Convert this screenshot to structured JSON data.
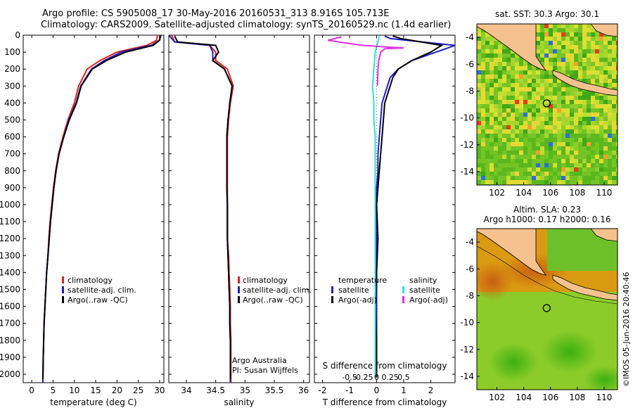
{
  "title": {
    "line1": "Argo profile: CS 5905008_17 30-May-2016 20160531_313 8.916S 105.713E",
    "line2": "Climatology: CARS2009. Satellite-adjusted climatology: synTS_20160529.nc (1.4d earlier)"
  },
  "side_label": "©IMOS 05-Jun-2016 20:40:46",
  "colors": {
    "red": "#e02020",
    "blue": "#1c1ccc",
    "black": "#000000",
    "cyan": "#30e0e0",
    "magenta": "#e030e0",
    "land": "#f5c28f"
  },
  "chart_data": [
    {
      "type": "line",
      "name": "temperature",
      "xlabel": "temperature (deg C)",
      "ylabel": "",
      "xlim": [
        -2,
        31
      ],
      "ylim": [
        2050,
        0
      ],
      "xticks": [
        0,
        5,
        10,
        15,
        20,
        25,
        30
      ],
      "yticks": [
        0,
        100,
        200,
        300,
        400,
        500,
        600,
        700,
        800,
        900,
        1000,
        1100,
        1200,
        1300,
        1400,
        1500,
        1600,
        1700,
        1800,
        1900,
        2000
      ],
      "series": [
        {
          "name": "climatology",
          "color": "#e02020",
          "x": [
            29.5,
            29.3,
            27,
            20,
            16,
            13,
            11,
            10,
            8.5,
            7.3,
            6.3,
            5.6,
            5.1,
            4.7,
            4.3,
            4.0,
            3.8,
            3.5,
            3.3,
            3.1,
            2.9,
            2.8,
            2.7,
            2.6
          ],
          "y": [
            0,
            30,
            60,
            100,
            150,
            200,
            300,
            400,
            500,
            600,
            700,
            800,
            900,
            1000,
            1100,
            1200,
            1300,
            1400,
            1500,
            1600,
            1700,
            1800,
            1900,
            2050
          ]
        },
        {
          "name": "satellite-adj. clim.",
          "color": "#1c1ccc",
          "x": [
            30.3,
            30,
            28,
            21,
            17,
            14,
            11.5,
            10.4,
            8.7,
            7.5,
            6.4,
            5.7,
            5.2,
            4.8,
            4.4,
            4.1,
            3.8,
            3.5,
            3.3,
            3.1,
            2.9,
            2.8,
            2.7,
            2.6
          ],
          "y": [
            0,
            30,
            60,
            100,
            150,
            200,
            300,
            400,
            500,
            600,
            700,
            800,
            900,
            1000,
            1100,
            1200,
            1300,
            1400,
            1500,
            1600,
            1700,
            1800,
            1900,
            2050
          ]
        },
        {
          "name": "Argo(..raw -QC)",
          "color": "#000000",
          "x": [
            30.1,
            30,
            28.5,
            22,
            17.5,
            14.2,
            11.6,
            10.5,
            8.8,
            7.5,
            6.4,
            5.7,
            5.2,
            4.8,
            4.4,
            4.1,
            3.8,
            3.5,
            3.3,
            3.1,
            2.9,
            2.8,
            2.7,
            2.6
          ],
          "y": [
            5,
            30,
            60,
            100,
            150,
            200,
            300,
            400,
            500,
            600,
            700,
            800,
            900,
            1000,
            1100,
            1200,
            1300,
            1400,
            1500,
            1600,
            1700,
            1800,
            1900,
            2030
          ]
        }
      ],
      "legend": [
        "climatology",
        "satellite-adj. clim.",
        "Argo(..raw -QC)"
      ]
    },
    {
      "type": "line",
      "name": "salinity",
      "xlabel": "salinity",
      "xlim": [
        33.7,
        36.1
      ],
      "ylim": [
        2050,
        0
      ],
      "xticks": [
        34,
        34.5,
        35,
        35.5,
        36
      ],
      "series": [
        {
          "name": "climatology",
          "color": "#e02020",
          "x": [
            33.75,
            33.8,
            34.4,
            34.5,
            34.5,
            34.7,
            34.8,
            34.75,
            34.72,
            34.7,
            34.7,
            34.7,
            34.7,
            34.7,
            34.7,
            34.7,
            34.72,
            34.73,
            34.74,
            34.75,
            34.75,
            34.76,
            34.76
          ],
          "y": [
            0,
            40,
            60,
            100,
            150,
            200,
            300,
            400,
            500,
            600,
            700,
            800,
            900,
            1000,
            1100,
            1200,
            1300,
            1400,
            1500,
            1600,
            1700,
            1800,
            2050
          ]
        },
        {
          "name": "satellite-adj. clim.",
          "color": "#1c1ccc",
          "x": [
            33.7,
            33.8,
            34.4,
            34.45,
            34.45,
            34.65,
            34.78,
            34.74,
            34.71,
            34.69,
            34.69,
            34.69,
            34.69,
            34.7,
            34.7,
            34.7,
            34.71,
            34.72,
            34.73,
            34.74,
            34.74,
            34.75,
            34.75
          ],
          "y": [
            0,
            40,
            60,
            100,
            150,
            200,
            300,
            400,
            500,
            600,
            700,
            800,
            900,
            1000,
            1100,
            1200,
            1300,
            1400,
            1500,
            1600,
            1700,
            1800,
            2050
          ]
        },
        {
          "name": "Argo(..raw -QC)",
          "color": "#000000",
          "x": [
            33.8,
            33.85,
            34.5,
            34.55,
            34.45,
            34.65,
            34.78,
            34.74,
            34.71,
            34.69,
            34.69,
            34.69,
            34.69,
            34.7,
            34.7,
            34.7,
            34.71,
            34.72,
            34.73,
            34.74,
            34.74,
            34.75,
            34.75
          ],
          "y": [
            5,
            40,
            60,
            100,
            150,
            200,
            300,
            400,
            500,
            600,
            700,
            800,
            900,
            1000,
            1100,
            1200,
            1300,
            1400,
            1500,
            1600,
            1700,
            1800,
            2030
          ]
        }
      ],
      "legend": [
        "climatology",
        "satellite-adj. clim.",
        "Argo(..raw -QC)"
      ],
      "annotation": [
        "Argo Australia",
        "PI: Susan Wijffels"
      ]
    },
    {
      "type": "line",
      "name": "difference from climatology",
      "xlabel": "T difference from climatology",
      "top_label": "S difference from climatology",
      "xlim": [
        -2.3,
        2.9
      ],
      "ylim": [
        2050,
        0
      ],
      "xticks": [
        -2,
        -1,
        0,
        1,
        2
      ],
      "xtick_labels": [
        "-2",
        "-1",
        "0",
        "1",
        "2"
      ],
      "top_ticks": [
        -0.5,
        -0.25,
        0,
        0.25,
        0.5
      ],
      "top_tick_labels": [
        "-0.5",
        "-0.25",
        "0",
        "0.25",
        "0.5"
      ],
      "series": [
        {
          "name": "temperature satellite",
          "color": "#1c1ccc",
          "x": [
            0.3,
            0.5,
            2.9,
            2.2,
            1.3,
            0.8,
            0.5,
            0.4,
            0.2,
            0.15,
            0.1,
            0.05,
            0.05,
            0.0,
            0.0,
            0.0,
            0.0,
            0.0,
            0.0,
            0.0,
            0.0
          ],
          "y": [
            5,
            20,
            60,
            100,
            150,
            200,
            250,
            300,
            400,
            500,
            600,
            700,
            800,
            900,
            1000,
            1200,
            1400,
            1600,
            1800,
            1950,
            2020
          ]
        },
        {
          "name": "temperature Argo(-adj)",
          "color": "#000000",
          "x": [
            0.6,
            0.9,
            2.4,
            2.0,
            1.3,
            0.8,
            0.6,
            0.5,
            0.3,
            0.25,
            0.2,
            0.15,
            0.1,
            0.05,
            0.0,
            0.05,
            0.0,
            -0.05,
            0.0,
            0.0,
            0.0
          ],
          "y": [
            5,
            20,
            60,
            100,
            150,
            200,
            250,
            300,
            400,
            500,
            600,
            700,
            800,
            900,
            1000,
            1200,
            1400,
            1600,
            1800,
            1950,
            2020
          ]
        },
        {
          "name": "salinity satellite",
          "color": "#30e0e0",
          "x": [
            0.1,
            0.05,
            -0.05,
            -0.1,
            -0.15,
            -0.1,
            -0.1,
            -0.05,
            -0.05,
            -0.05,
            -0.05,
            -0.05,
            -0.05,
            -0.05,
            -0.05,
            -0.05,
            -0.05,
            -0.05,
            -0.05
          ],
          "y": [
            5,
            40,
            100,
            200,
            300,
            400,
            500,
            600,
            700,
            800,
            900,
            1000,
            1200,
            1400,
            1600,
            1800,
            1900,
            1950,
            2020
          ]
        },
        {
          "name": "salinity Argo(-adj)",
          "color": "#e030e0",
          "x": [
            -1.3,
            -1.8,
            -1.2,
            -0.5,
            0.4,
            1.0,
            0.3,
            0.15,
            0.08,
            0.05,
            0.03
          ],
          "y": [
            10,
            30,
            45,
            60,
            70,
            75,
            80,
            100,
            150,
            200,
            300
          ]
        }
      ],
      "legend_temperature": {
        "header": "temperature",
        "items": [
          "satellite",
          "Argo(-adj)"
        ]
      },
      "legend_salinity": {
        "header": "salinity",
        "items": [
          "satellite",
          "Argo(-adj)"
        ]
      }
    },
    {
      "type": "heatmap",
      "name": "SST map",
      "title": "sat. SST: 30.3  Argo: 30.1",
      "xlim": [
        100.5,
        111
      ],
      "ylim": [
        -15,
        -3
      ],
      "xticks": [
        102,
        104,
        106,
        108,
        110
      ],
      "yticks": [
        -4,
        -6,
        -8,
        -10,
        -12,
        -14
      ],
      "argo_position": {
        "lon": 105.713,
        "lat": -8.916
      }
    },
    {
      "type": "heatmap",
      "name": "SLA map",
      "title": "Altim. SLA: 0.23",
      "subtitle": "Argo h1000: 0.17  h2000: 0.16",
      "xlim": [
        100.5,
        111
      ],
      "ylim": [
        -15,
        -3
      ],
      "xticks": [
        102,
        104,
        106,
        108,
        110
      ],
      "yticks": [
        -4,
        -6,
        -8,
        -10,
        -12,
        -14
      ],
      "argo_position": {
        "lon": 105.713,
        "lat": -8.916
      }
    }
  ]
}
